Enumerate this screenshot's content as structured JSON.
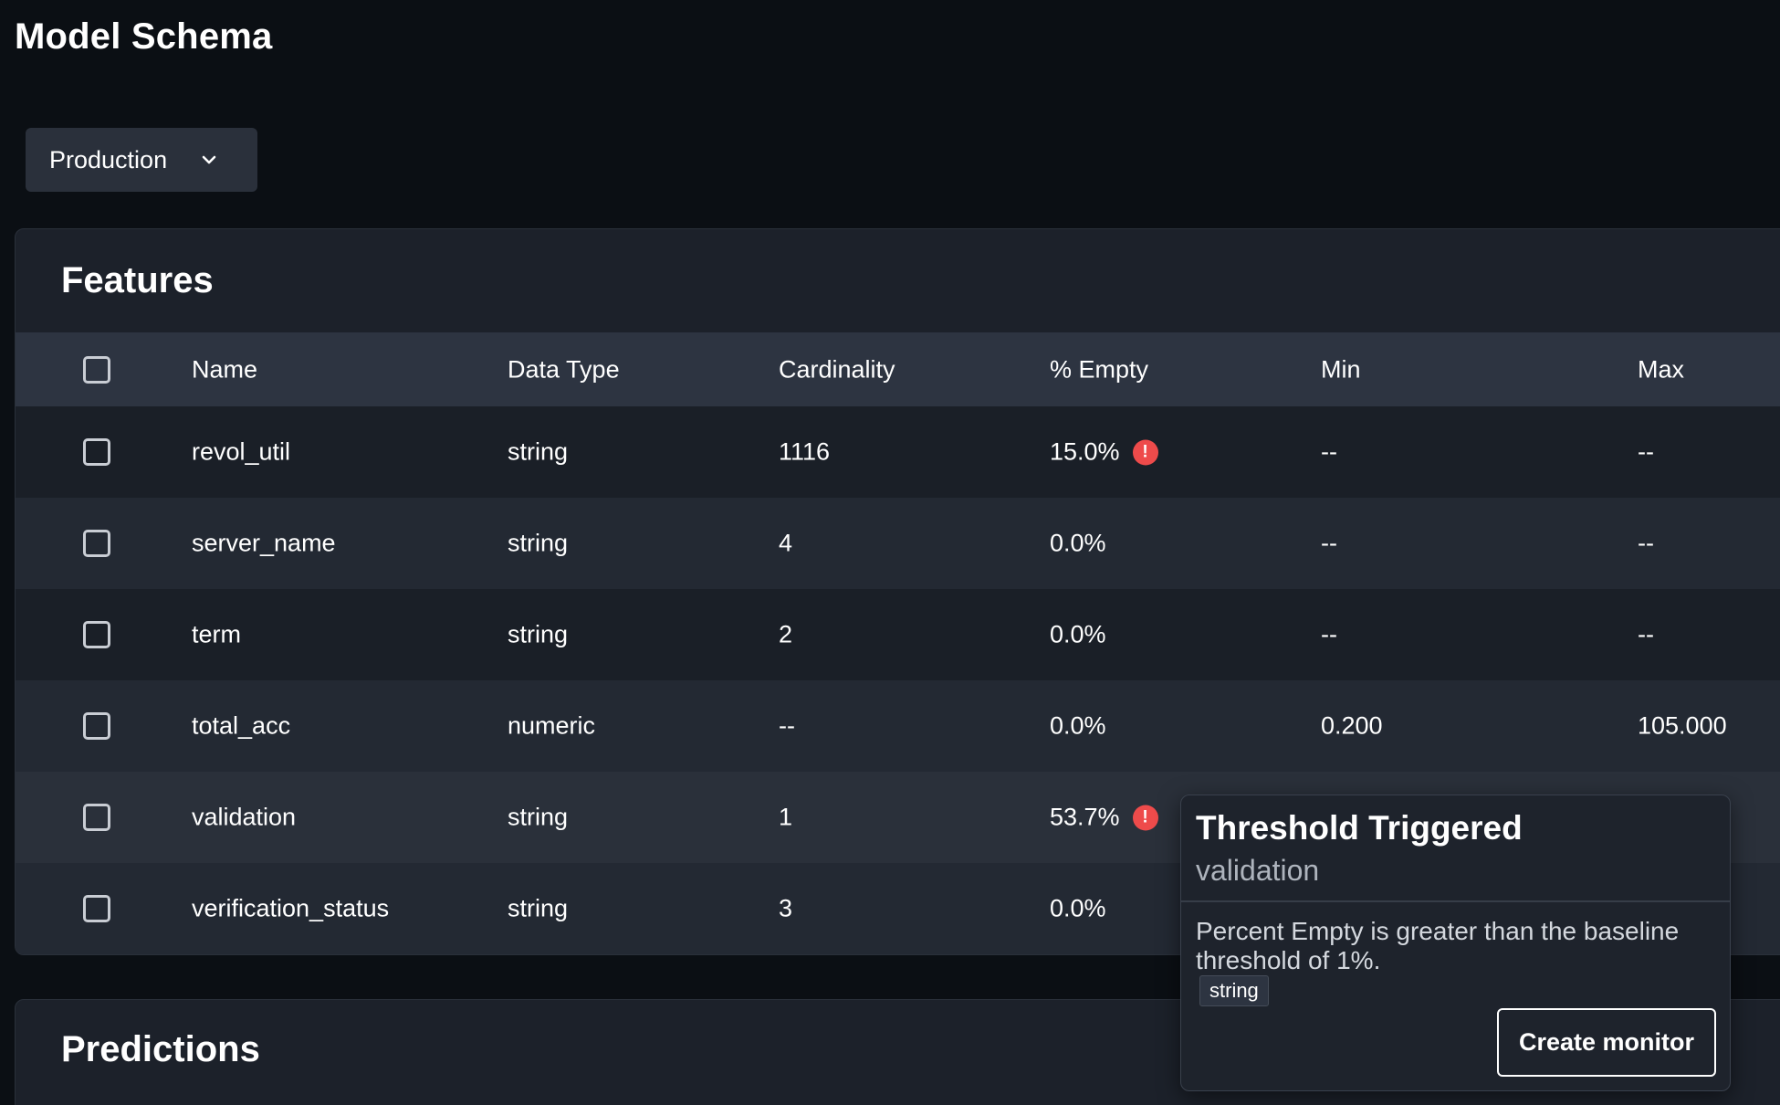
{
  "page": {
    "title": "Model Schema"
  },
  "environment_select": {
    "value": "Production",
    "icon": "chevron-down-icon"
  },
  "features": {
    "title": "Features",
    "columns": [
      "Name",
      "Data Type",
      "Cardinality",
      "% Empty",
      "Min",
      "Max"
    ],
    "rows": [
      {
        "name": "revol_util",
        "type": "string",
        "cardinality": "1116",
        "empty": "15.0%",
        "alert": true,
        "min": "--",
        "max": "--"
      },
      {
        "name": "server_name",
        "type": "string",
        "cardinality": "4",
        "empty": "0.0%",
        "alert": false,
        "min": "--",
        "max": "--"
      },
      {
        "name": "term",
        "type": "string",
        "cardinality": "2",
        "empty": "0.0%",
        "alert": false,
        "min": "--",
        "max": "--"
      },
      {
        "name": "total_acc",
        "type": "numeric",
        "cardinality": "--",
        "empty": "0.0%",
        "alert": false,
        "min": "0.200",
        "max": "105.000"
      },
      {
        "name": "validation",
        "type": "string",
        "cardinality": "1",
        "empty": "53.7%",
        "alert": true,
        "min": "",
        "max": ""
      },
      {
        "name": "verification_status",
        "type": "string",
        "cardinality": "3",
        "empty": "0.0%",
        "alert": false,
        "min": "",
        "max": ""
      }
    ]
  },
  "predictions": {
    "title": "Predictions"
  },
  "threshold_popover": {
    "title": "Threshold Triggered",
    "feature": "validation",
    "message": "Percent Empty is greater than the baseline threshold of 1%.",
    "type_tag": "string",
    "button_label": "Create monitor"
  },
  "colors": {
    "alert": "#ee4b4b",
    "background": "#0b0f14",
    "panel": "#1c212a",
    "header_row": "#2d3441"
  }
}
